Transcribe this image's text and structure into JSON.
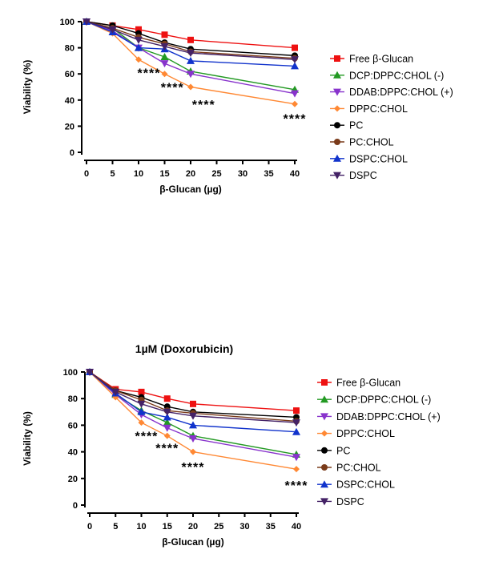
{
  "chart_data": [
    {
      "type": "line",
      "title": "",
      "xlabel": "β-Glucan (µg)",
      "ylabel": "Viability (%)",
      "x": [
        0,
        5,
        10,
        15,
        20,
        40
      ],
      "xticks": [
        "0",
        "5",
        "10",
        "15",
        "20",
        "25",
        "30",
        "35",
        "40"
      ],
      "yticks": [
        "0",
        "20",
        "40",
        "60",
        "80",
        "100"
      ],
      "xlim": [
        0,
        40
      ],
      "ylim": [
        0,
        100
      ],
      "legend_position": "right",
      "series": [
        {
          "name": "Free β-Glucan",
          "values": [
            100,
            97,
            94,
            90,
            86,
            80
          ],
          "color": "#ee1111",
          "marker": "square"
        },
        {
          "name": "DCP:DPPC:CHOL (-)",
          "values": [
            100,
            95,
            80,
            73,
            62,
            48
          ],
          "color": "#229922",
          "marker": "triangle-up"
        },
        {
          "name": "DDAB:DPPC:CHOL (+)",
          "values": [
            100,
            93,
            80,
            68,
            60,
            45
          ],
          "color": "#8833cc",
          "marker": "triangle-down"
        },
        {
          "name": "DPPC:CHOL",
          "values": [
            100,
            91,
            71,
            60,
            50,
            37
          ],
          "color": "#ff8833",
          "marker": "diamond"
        },
        {
          "name": "PC",
          "values": [
            100,
            97,
            91,
            84,
            79,
            74
          ],
          "color": "#000000",
          "marker": "circle"
        },
        {
          "name": "PC:CHOL",
          "values": [
            100,
            95,
            88,
            83,
            77,
            72
          ],
          "color": "#7a3b1a",
          "marker": "circle"
        },
        {
          "name": "DSPC:CHOL",
          "values": [
            100,
            92,
            80,
            79,
            70,
            66
          ],
          "color": "#1133cc",
          "marker": "triangle-up"
        },
        {
          "name": "DSPC",
          "values": [
            100,
            94,
            86,
            81,
            76,
            71
          ],
          "color": "#442266",
          "marker": "triangle-down"
        }
      ],
      "annotations": [
        {
          "text": "****",
          "x": 12,
          "y": 64
        },
        {
          "text": "****",
          "x": 16.5,
          "y": 53
        },
        {
          "text": "****",
          "x": 22.5,
          "y": 40
        },
        {
          "text": "****",
          "x": 40,
          "y": 29
        }
      ]
    },
    {
      "type": "line",
      "title": "1µM (Doxorubicin)",
      "xlabel": "β-Glucan (µg)",
      "ylabel": "Viability (%)",
      "x": [
        0,
        5,
        10,
        15,
        20,
        40
      ],
      "xticks": [
        "0",
        "5",
        "10",
        "15",
        "20",
        "25",
        "30",
        "35",
        "40"
      ],
      "yticks": [
        "0",
        "20",
        "40",
        "60",
        "80",
        "100"
      ],
      "xlim": [
        0,
        40
      ],
      "ylim": [
        0,
        100
      ],
      "legend_position": "right",
      "series": [
        {
          "name": "Free β-Glucan",
          "values": [
            100,
            87,
            85,
            80,
            76,
            71
          ],
          "color": "#ee1111",
          "marker": "square"
        },
        {
          "name": "DCP:DPPC:CHOL (-)",
          "values": [
            100,
            83,
            71,
            62,
            52,
            38
          ],
          "color": "#229922",
          "marker": "triangle-up"
        },
        {
          "name": "DDAB:DPPC:CHOL (+)",
          "values": [
            100,
            83,
            68,
            58,
            50,
            36
          ],
          "color": "#8833cc",
          "marker": "triangle-down"
        },
        {
          "name": "DPPC:CHOL",
          "values": [
            100,
            81,
            62,
            52,
            40,
            27
          ],
          "color": "#ff8833",
          "marker": "diamond"
        },
        {
          "name": "PC",
          "values": [
            100,
            86,
            81,
            74,
            70,
            66
          ],
          "color": "#000000",
          "marker": "circle"
        },
        {
          "name": "PC:CHOL",
          "values": [
            100,
            86,
            79,
            71,
            69,
            63
          ],
          "color": "#7a3b1a",
          "marker": "circle"
        },
        {
          "name": "DSPC:CHOL",
          "values": [
            100,
            84,
            70,
            66,
            60,
            55
          ],
          "color": "#1133cc",
          "marker": "triangle-up"
        },
        {
          "name": "DSPC",
          "values": [
            100,
            85,
            76,
            70,
            67,
            62
          ],
          "color": "#442266",
          "marker": "triangle-down"
        }
      ],
      "annotations": [
        {
          "text": "****",
          "x": 11,
          "y": 55
        },
        {
          "text": "****",
          "x": 15,
          "y": 46
        },
        {
          "text": "****",
          "x": 20,
          "y": 32
        },
        {
          "text": "****",
          "x": 40,
          "y": 18
        }
      ]
    }
  ]
}
